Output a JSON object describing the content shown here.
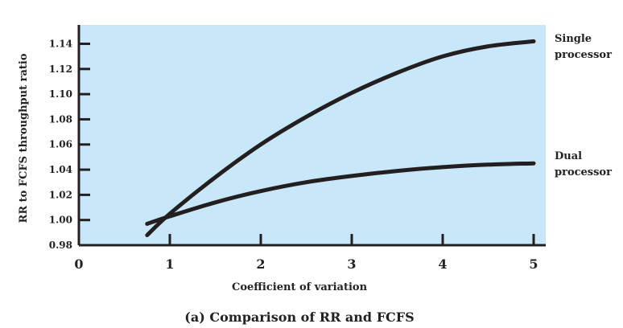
{
  "chart_data": {
    "type": "line",
    "title": "",
    "caption": "(a) Comparison of RR and FCFS",
    "xlabel": "Coefficient of variation",
    "ylabel": "RR to FCFS throughput ratio",
    "xlim": [
      0,
      5
    ],
    "ylim": [
      0.98,
      1.155
    ],
    "x_ticks": [
      0,
      1,
      2,
      3,
      4,
      5
    ],
    "x_tick_labels": [
      "0",
      "1",
      "2",
      "3",
      "4",
      "5"
    ],
    "y_ticks": [
      0.98,
      1.0,
      1.02,
      1.04,
      1.06,
      1.08,
      1.1,
      1.12,
      1.14
    ],
    "y_tick_labels": [
      "0.98",
      "1.00",
      "1.02",
      "1.04",
      "1.06",
      "1.08",
      "1.10",
      "1.12",
      "1.14"
    ],
    "grid": false,
    "legend": "direct-labels-right",
    "colors": {
      "plot_background": "#c8e8fa",
      "line": "#231f20",
      "axis": "#231f20"
    },
    "series": [
      {
        "name": "Single processor",
        "label_lines": [
          "Single",
          "processor"
        ],
        "x": [
          0.75,
          1.0,
          1.5,
          2.0,
          2.5,
          3.0,
          3.5,
          4.0,
          4.5,
          5.0
        ],
        "values": [
          0.988,
          1.005,
          1.034,
          1.06,
          1.082,
          1.101,
          1.117,
          1.13,
          1.138,
          1.142
        ]
      },
      {
        "name": "Dual processor",
        "label_lines": [
          "Dual",
          "processor"
        ],
        "x": [
          0.75,
          1.0,
          1.5,
          2.0,
          2.5,
          3.0,
          3.5,
          4.0,
          4.5,
          5.0
        ],
        "values": [
          0.997,
          1.003,
          1.014,
          1.023,
          1.03,
          1.035,
          1.039,
          1.042,
          1.044,
          1.045
        ]
      }
    ]
  }
}
